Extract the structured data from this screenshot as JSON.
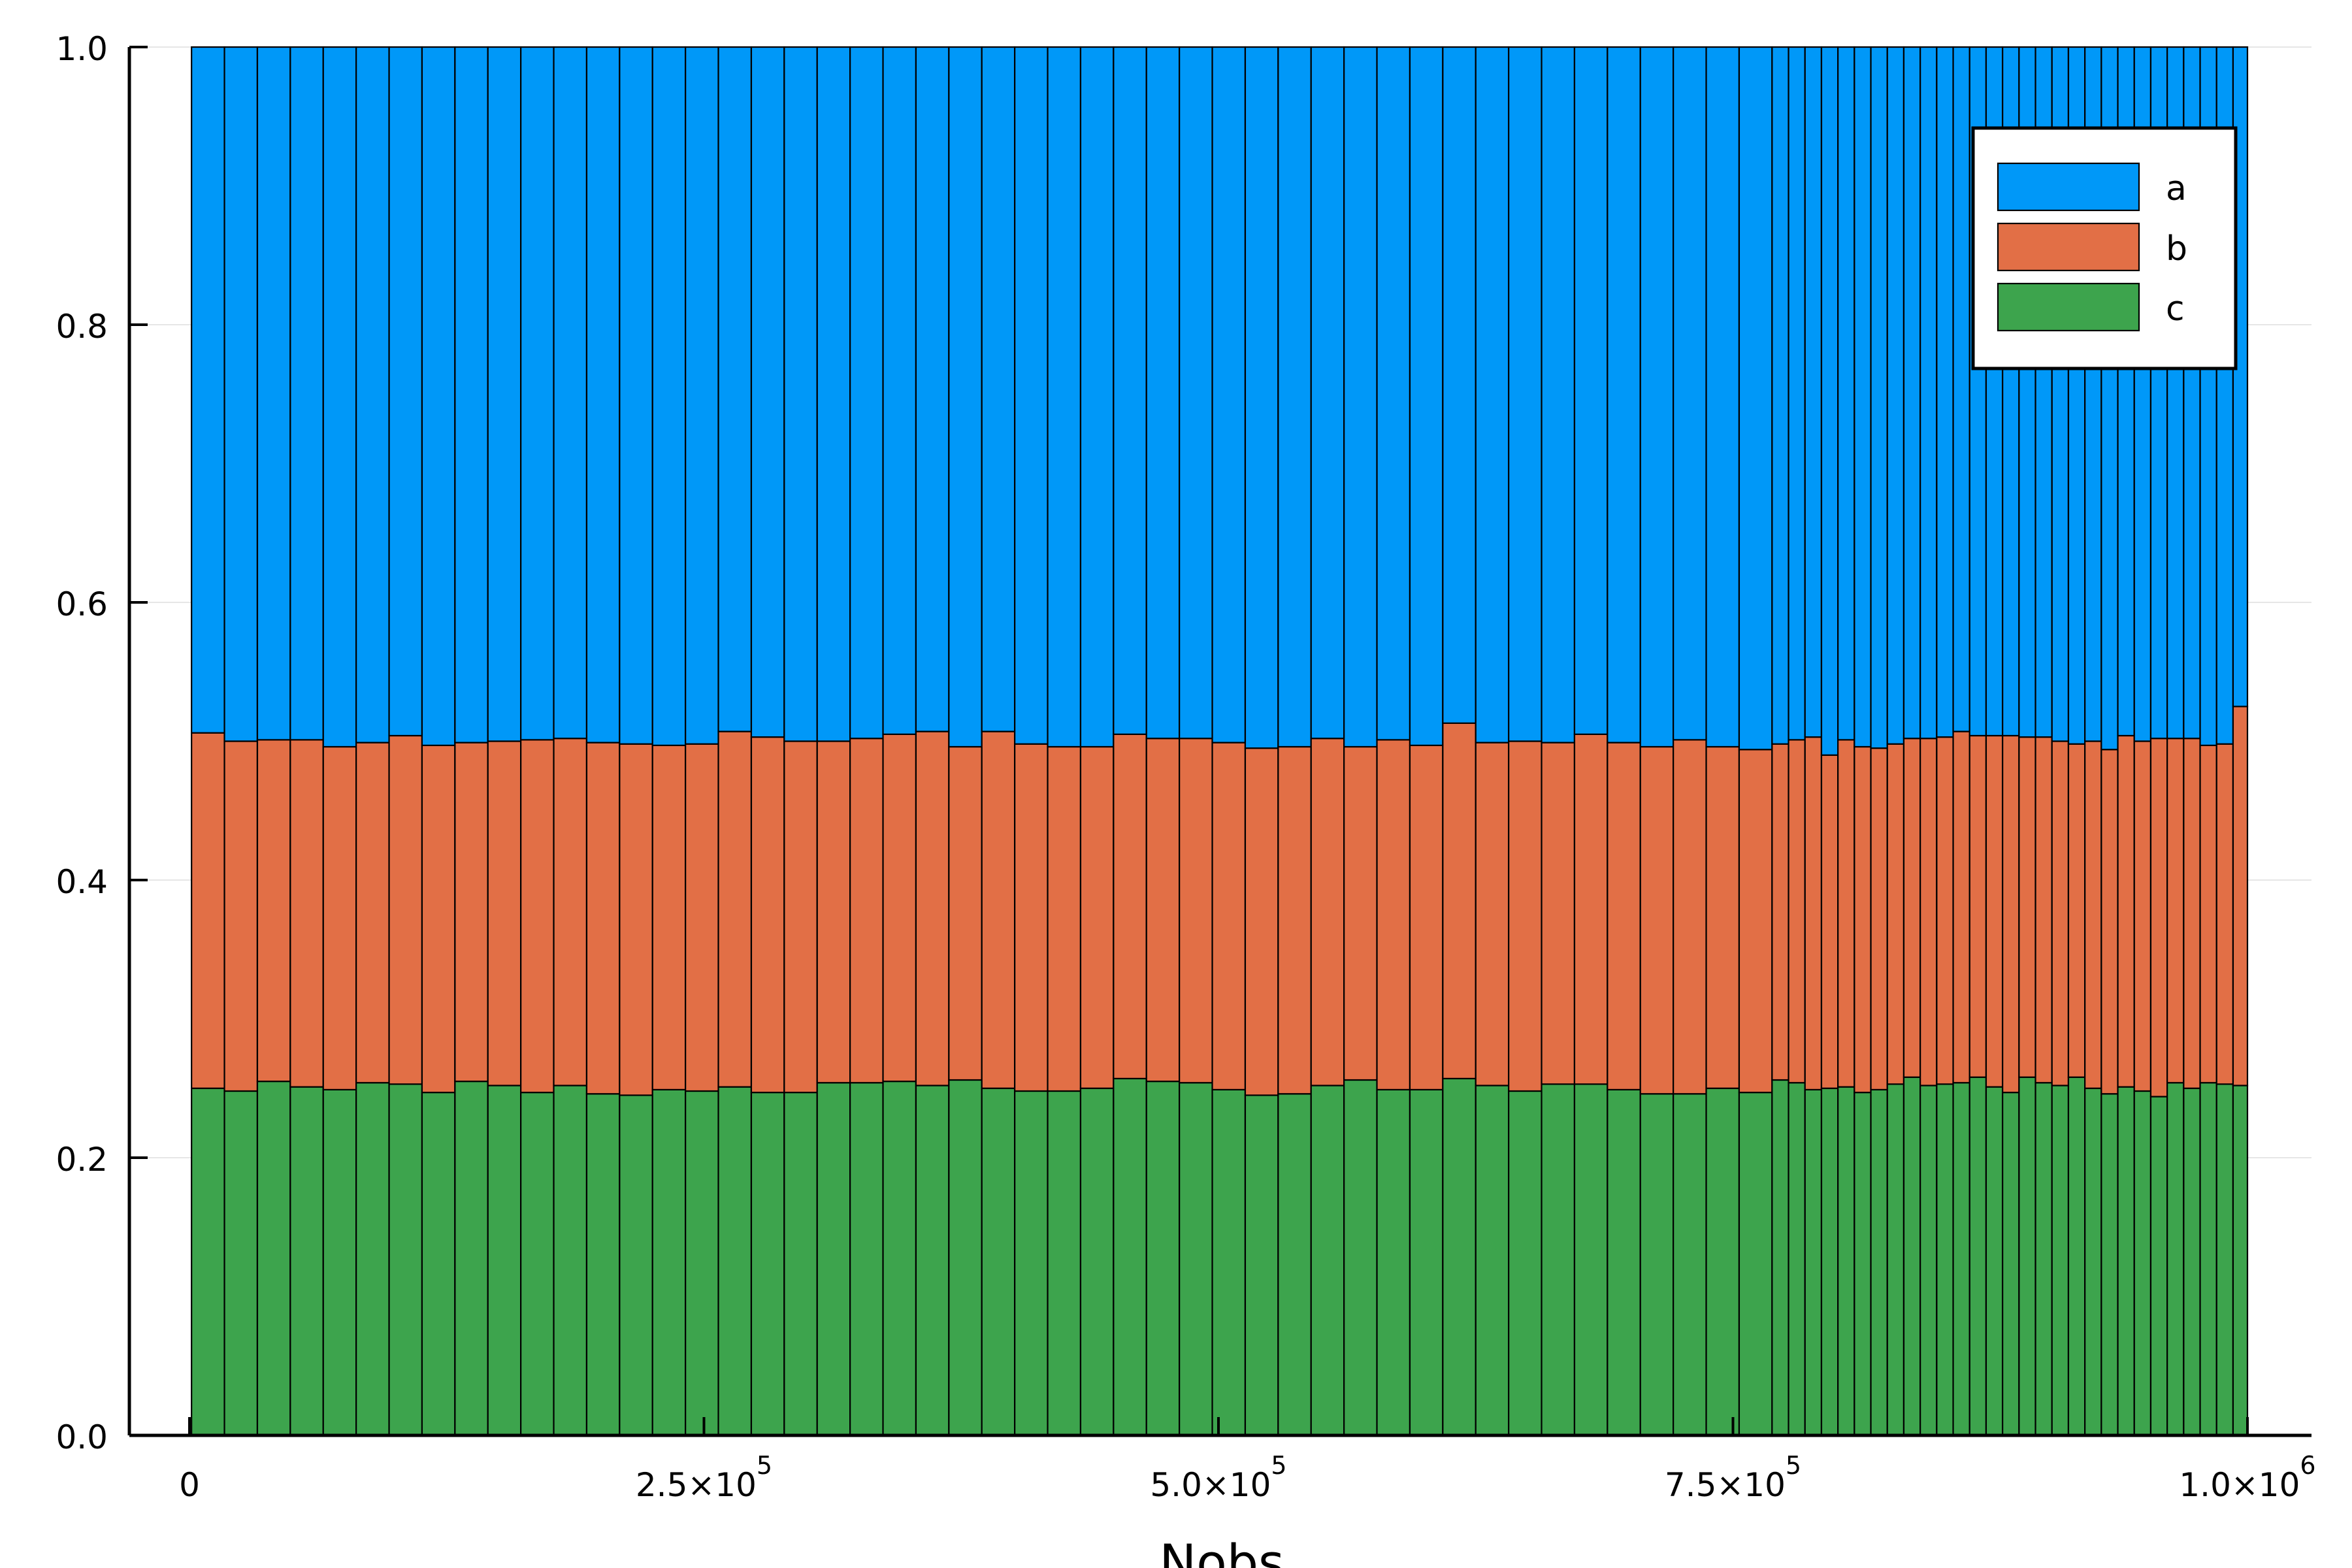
{
  "chart_data": {
    "type": "bar",
    "stacked": true,
    "xlabel": "Nobs",
    "ylabel": "",
    "title": "",
    "xlim": [
      0,
      1000000
    ],
    "ylim": [
      0,
      1
    ],
    "grid": true,
    "legend_position": "top-right",
    "y_ticks": [
      "0.0",
      "0.2",
      "0.4",
      "0.6",
      "0.8",
      "1.0"
    ],
    "x_ticks": [
      {
        "value": 0,
        "mantissa": "0",
        "exponent": ""
      },
      {
        "value": 250000,
        "mantissa": "2.5×10",
        "exponent": "5"
      },
      {
        "value": 500000,
        "mantissa": "5.0×10",
        "exponent": "5"
      },
      {
        "value": 750000,
        "mantissa": "7.5×10",
        "exponent": "5"
      },
      {
        "value": 1000000,
        "mantissa": "1.0×10",
        "exponent": "6"
      }
    ],
    "bin_edges": [
      1000,
      17000,
      33000,
      49000,
      65000,
      81000,
      97000,
      113000,
      129000,
      145000,
      161000,
      177000,
      193000,
      209000,
      225000,
      241000,
      257000,
      273000,
      289000,
      305000,
      321000,
      337000,
      353000,
      369000,
      385000,
      401000,
      417000,
      433000,
      449000,
      465000,
      481000,
      497000,
      513000,
      529000,
      545000,
      561000,
      577000,
      593000,
      609000,
      625000,
      641000,
      657000,
      673000,
      689000,
      705000,
      721000,
      737000,
      753000,
      769000,
      777000,
      785000,
      793000,
      801000,
      809000,
      817000,
      825000,
      833000,
      841000,
      849000,
      857000,
      865000,
      873000,
      881000,
      889000,
      897000,
      905000,
      913000,
      921000,
      929000,
      937000,
      945000,
      953000,
      961000,
      969000,
      977000,
      985000,
      993000,
      1000000
    ],
    "series": [
      {
        "name": "c",
        "color": "#3da44d",
        "values": [
          0.25,
          0.248,
          0.255,
          0.251,
          0.249,
          0.254,
          0.253,
          0.247,
          0.255,
          0.252,
          0.247,
          0.252,
          0.246,
          0.245,
          0.249,
          0.248,
          0.251,
          0.247,
          0.247,
          0.254,
          0.254,
          0.255,
          0.252,
          0.256,
          0.25,
          0.248,
          0.248,
          0.25,
          0.257,
          0.255,
          0.254,
          0.249,
          0.245,
          0.246,
          0.252,
          0.256,
          0.249,
          0.249,
          0.257,
          0.252,
          0.248,
          0.253,
          0.253,
          0.249,
          0.246,
          0.246,
          0.25,
          0.247,
          0.256,
          0.254,
          0.249,
          0.25,
          0.251,
          0.247,
          0.249,
          0.253,
          0.258,
          0.252,
          0.253,
          0.254,
          0.258,
          0.251,
          0.247,
          0.258,
          0.254,
          0.252,
          0.258,
          0.25,
          0.246,
          0.251,
          0.248,
          0.244,
          0.254,
          0.25,
          0.254,
          0.253,
          0.252
        ]
      },
      {
        "name": "b",
        "color": "#e26f46",
        "values": [
          0.256,
          0.252,
          0.246,
          0.25,
          0.247,
          0.245,
          0.251,
          0.25,
          0.244,
          0.248,
          0.254,
          0.25,
          0.253,
          0.253,
          0.248,
          0.25,
          0.256,
          0.256,
          0.253,
          0.246,
          0.248,
          0.25,
          0.255,
          0.24,
          0.257,
          0.25,
          0.248,
          0.246,
          0.248,
          0.247,
          0.248,
          0.25,
          0.25,
          0.25,
          0.25,
          0.24,
          0.252,
          0.248,
          0.256,
          0.247,
          0.252,
          0.246,
          0.252,
          0.25,
          0.25,
          0.255,
          0.246,
          0.247,
          0.242,
          0.247,
          0.254,
          0.24,
          0.25,
          0.249,
          0.246,
          0.245,
          0.244,
          0.25,
          0.25,
          0.253,
          0.246,
          0.253,
          0.257,
          0.245,
          0.249,
          0.248,
          0.24,
          0.25,
          0.248,
          0.253,
          0.252,
          0.258,
          0.248,
          0.252,
          0.243,
          0.245,
          0.273
        ]
      },
      {
        "name": "a",
        "color": "#0098f8",
        "values": [
          0.494,
          0.5,
          0.499,
          0.499,
          0.504,
          0.501,
          0.496,
          0.503,
          0.501,
          0.5,
          0.499,
          0.498,
          0.501,
          0.502,
          0.503,
          0.502,
          0.493,
          0.497,
          0.5,
          0.5,
          0.498,
          0.495,
          0.493,
          0.504,
          0.493,
          0.502,
          0.504,
          0.504,
          0.495,
          0.498,
          0.498,
          0.501,
          0.505,
          0.504,
          0.498,
          0.504,
          0.499,
          0.503,
          0.487,
          0.501,
          0.5,
          0.501,
          0.495,
          0.501,
          0.504,
          0.499,
          0.504,
          0.506,
          0.502,
          0.499,
          0.497,
          0.51,
          0.499,
          0.504,
          0.505,
          0.502,
          0.498,
          0.498,
          0.497,
          0.493,
          0.496,
          0.496,
          0.496,
          0.497,
          0.497,
          0.5,
          0.502,
          0.5,
          0.506,
          0.496,
          0.5,
          0.498,
          0.498,
          0.498,
          0.503,
          0.502,
          0.475
        ]
      }
    ],
    "legend": [
      {
        "label": "a",
        "color": "#0098f8"
      },
      {
        "label": "b",
        "color": "#e26f46"
      },
      {
        "label": "c",
        "color": "#3da44d"
      }
    ]
  }
}
